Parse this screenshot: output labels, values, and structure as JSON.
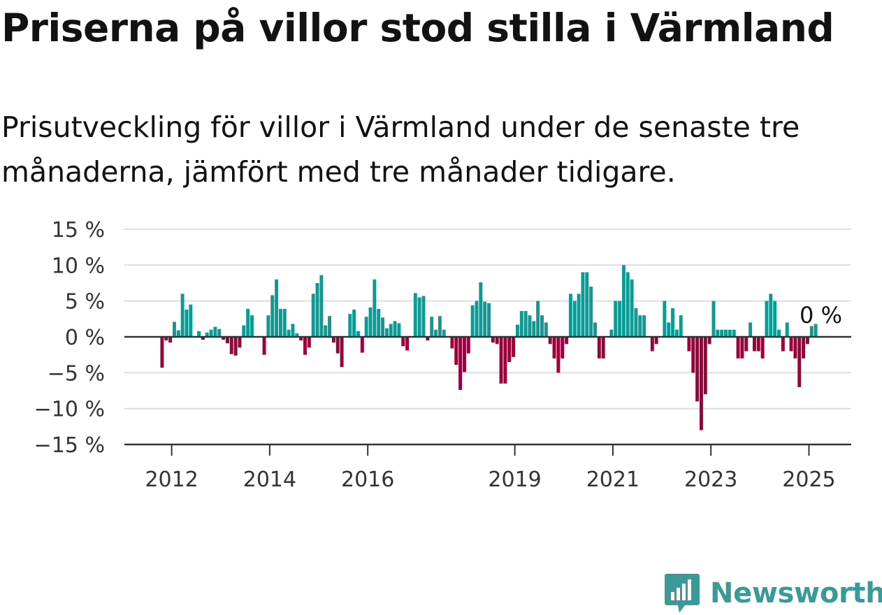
{
  "title": "Priserna på villor stod stilla i Värmland",
  "subtitle": "Prisutveckling för villor i Värmland under de senaste tre månaderna, jämfört med tre månader tidigare.",
  "brand": {
    "name": "Newsworthy",
    "icon": "newsworthy-logo-icon"
  },
  "colors": {
    "positive": "#0d9a94",
    "negative": "#9b0038",
    "grid": "#dddddd",
    "axis": "#333333"
  },
  "chart_data": {
    "type": "bar",
    "title": "Priserna på villor stod stilla i Värmland",
    "xlabel": "",
    "ylabel": "",
    "ylim": [
      -15,
      15
    ],
    "yticks": [
      15,
      10,
      5,
      0,
      -5,
      -10,
      -15
    ],
    "ytick_labels": [
      "15 %",
      "10 %",
      "5 %",
      "0 %",
      "−5 %",
      "−10 %",
      "−15 %"
    ],
    "xticks": [
      "2012-01",
      "2014-01",
      "2016-01",
      "2019-01",
      "2021-01",
      "2023-01",
      "2025-01"
    ],
    "xtick_labels": [
      "2012",
      "2014",
      "2016",
      "2019",
      "2021",
      "2023",
      "2025"
    ],
    "grid": true,
    "last_value_label": "0 %",
    "start_month": "2011-10",
    "values": [
      0,
      -4.3,
      -0.5,
      -0.8,
      2.1,
      0.9,
      6,
      3.8,
      4.5,
      0,
      0.8,
      -0.4,
      0.6,
      1,
      1.4,
      1.1,
      -0.4,
      -0.9,
      -2.4,
      -2.6,
      -1.5,
      1.6,
      3.9,
      3,
      0,
      0,
      -2.5,
      3,
      5.8,
      8,
      3.9,
      3.9,
      1,
      1.8,
      0.5,
      -0.5,
      -2.5,
      -1.5,
      6,
      7.5,
      8.6,
      1.6,
      2.9,
      -0.8,
      -2.3,
      -4.2,
      0,
      3.2,
      3.8,
      0.8,
      -2.2,
      2.8,
      4.1,
      8,
      3.9,
      2.7,
      1.2,
      1.8,
      2.2,
      1.9,
      -1.3,
      -1.9,
      0,
      6.1,
      5.5,
      5.7,
      -0.5,
      2.8,
      1,
      2.9,
      1,
      0,
      -1.6,
      -3.9,
      -7.4,
      -4.9,
      -2.3,
      4.4,
      5,
      7.6,
      4.9,
      4.7,
      -0.8,
      -1,
      -6.5,
      -6.5,
      -3.5,
      -2.8,
      1.7,
      3.6,
      3.6,
      3,
      2.2,
      5,
      3,
      2,
      -1,
      -3,
      -5,
      -3,
      -1,
      6,
      5,
      6,
      9,
      9,
      7,
      2,
      -3,
      -3,
      0,
      1,
      5,
      5,
      10,
      9,
      8,
      4,
      3,
      3,
      0,
      -2,
      -1,
      0,
      5,
      2,
      4,
      1,
      3,
      0,
      -2,
      -5,
      -9,
      -13,
      -8,
      -1,
      5,
      1,
      1,
      1,
      1,
      1,
      -3,
      -3,
      -2,
      2,
      -2,
      -2,
      -3,
      5,
      6,
      5,
      1,
      -2,
      2,
      -2,
      -3,
      -7,
      -3,
      -1,
      1.5,
      1.8,
      0
    ]
  }
}
